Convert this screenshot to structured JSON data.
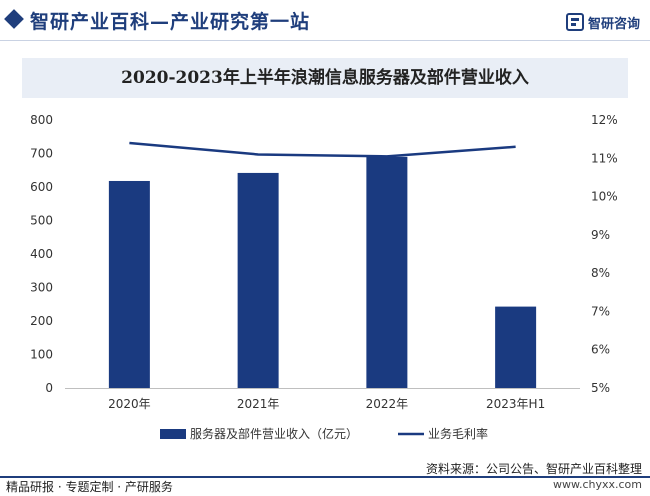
{
  "header": {
    "site_title": "智研产业百科—产业研究第一站",
    "logo_text": "智研咨询"
  },
  "chart_data": {
    "type": "bar",
    "title": "2020-2023年上半年浪潮信息服务器及部件营业收入",
    "categories": [
      "2020年",
      "2021年",
      "2022年",
      "2023年H1"
    ],
    "series": [
      {
        "name": "服务器及部件营业收入（亿元）",
        "type": "bar",
        "axis": "left",
        "values": [
          618,
          642,
          690,
          243
        ],
        "color": "#1a3a80"
      },
      {
        "name": "业务毛利率",
        "type": "line",
        "axis": "right",
        "values": [
          11.4,
          11.1,
          11.05,
          11.3
        ],
        "unit": "%",
        "color": "#1a3a80"
      }
    ],
    "y_left": {
      "min": 0,
      "max": 800,
      "ticks": [
        "0",
        "100",
        "200",
        "300",
        "400",
        "500",
        "600",
        "700",
        "800"
      ]
    },
    "y_right": {
      "min": 5,
      "max": 12,
      "ticks": [
        "5%",
        "6%",
        "7%",
        "8%",
        "9%",
        "10%",
        "11%",
        "12%"
      ]
    },
    "legend_position": "bottom",
    "grid": false
  },
  "footer": {
    "source": "资料来源：公司公告、智研产业百科整理",
    "tagline": "精品研报 · 专题定制 · 产研服务",
    "website": "www.chyxx.com"
  }
}
